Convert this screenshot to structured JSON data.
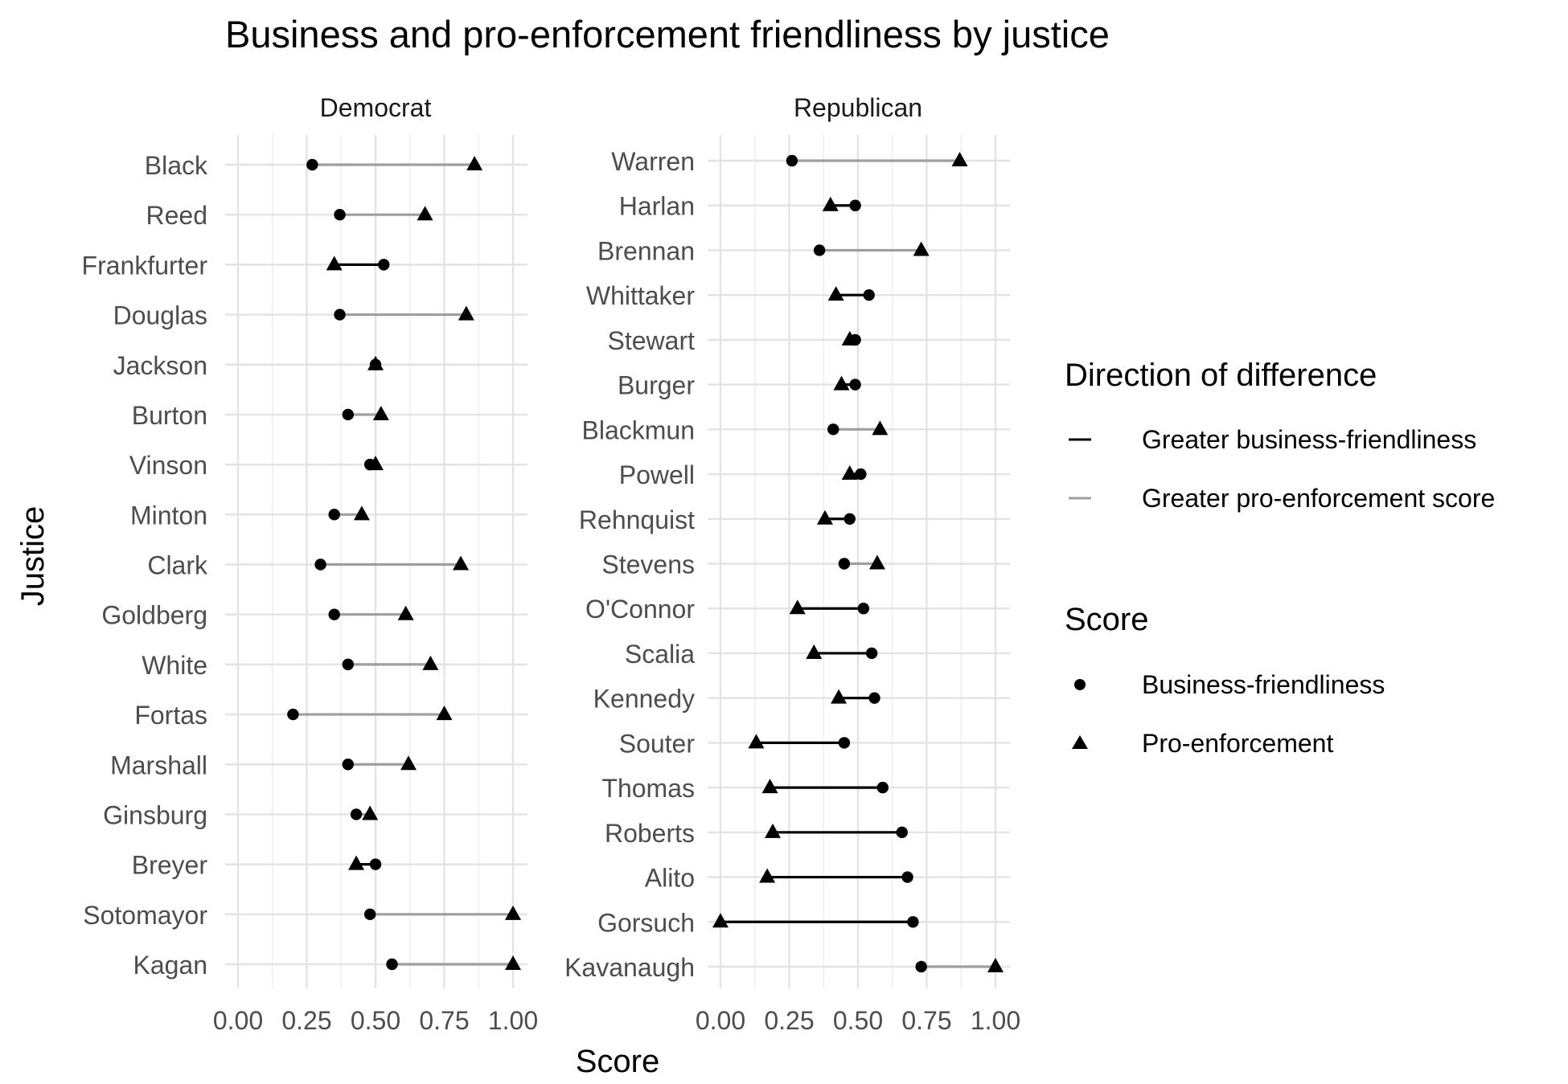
{
  "chart_data": {
    "type": "dumbbell",
    "title": "Business and pro-enforcement friendliness by justice",
    "xlabel": "Score",
    "ylabel": "Justice",
    "xlim": [
      0,
      1
    ],
    "x_ticks": [
      "0.00",
      "0.25",
      "0.50",
      "0.75",
      "1.00"
    ],
    "grid": true,
    "legend_placement": "right",
    "legend": {
      "direction_title": "Direction of difference",
      "direction_items": [
        {
          "label": "Greater business-friendliness",
          "color": "#000000"
        },
        {
          "label": "Greater pro-enforcement score",
          "color": "#9e9e9e"
        }
      ],
      "score_title": "Score",
      "score_items": [
        {
          "label": "Business-friendliness",
          "shape": "circle"
        },
        {
          "label": "Pro-enforcement",
          "shape": "triangle"
        }
      ]
    },
    "facets": [
      {
        "name": "Democrat",
        "justices": [
          {
            "name": "Black",
            "business": 0.27,
            "enforcement": 0.86
          },
          {
            "name": "Reed",
            "business": 0.37,
            "enforcement": 0.68
          },
          {
            "name": "Frankfurter",
            "business": 0.53,
            "enforcement": 0.35
          },
          {
            "name": "Douglas",
            "business": 0.37,
            "enforcement": 0.83
          },
          {
            "name": "Jackson",
            "business": 0.5,
            "enforcement": 0.5
          },
          {
            "name": "Burton",
            "business": 0.4,
            "enforcement": 0.52
          },
          {
            "name": "Vinson",
            "business": 0.48,
            "enforcement": 0.5
          },
          {
            "name": "Minton",
            "business": 0.35,
            "enforcement": 0.45
          },
          {
            "name": "Clark",
            "business": 0.3,
            "enforcement": 0.81
          },
          {
            "name": "Goldberg",
            "business": 0.35,
            "enforcement": 0.61
          },
          {
            "name": "White",
            "business": 0.4,
            "enforcement": 0.7
          },
          {
            "name": "Fortas",
            "business": 0.2,
            "enforcement": 0.75
          },
          {
            "name": "Marshall",
            "business": 0.4,
            "enforcement": 0.62
          },
          {
            "name": "Ginsburg",
            "business": 0.43,
            "enforcement": 0.48
          },
          {
            "name": "Breyer",
            "business": 0.5,
            "enforcement": 0.43
          },
          {
            "name": "Sotomayor",
            "business": 0.48,
            "enforcement": 1.0
          },
          {
            "name": "Kagan",
            "business": 0.56,
            "enforcement": 1.0
          }
        ]
      },
      {
        "name": "Republican",
        "justices": [
          {
            "name": "Warren",
            "business": 0.26,
            "enforcement": 0.87
          },
          {
            "name": "Harlan",
            "business": 0.49,
            "enforcement": 0.4
          },
          {
            "name": "Brennan",
            "business": 0.36,
            "enforcement": 0.73
          },
          {
            "name": "Whittaker",
            "business": 0.54,
            "enforcement": 0.42
          },
          {
            "name": "Stewart",
            "business": 0.49,
            "enforcement": 0.47
          },
          {
            "name": "Burger",
            "business": 0.49,
            "enforcement": 0.44
          },
          {
            "name": "Blackmun",
            "business": 0.41,
            "enforcement": 0.58
          },
          {
            "name": "Powell",
            "business": 0.51,
            "enforcement": 0.47
          },
          {
            "name": "Rehnquist",
            "business": 0.47,
            "enforcement": 0.38
          },
          {
            "name": "Stevens",
            "business": 0.45,
            "enforcement": 0.57
          },
          {
            "name": "O'Connor",
            "business": 0.52,
            "enforcement": 0.28
          },
          {
            "name": "Scalia",
            "business": 0.55,
            "enforcement": 0.34
          },
          {
            "name": "Kennedy",
            "business": 0.56,
            "enforcement": 0.43
          },
          {
            "name": "Souter",
            "business": 0.45,
            "enforcement": 0.13
          },
          {
            "name": "Thomas",
            "business": 0.59,
            "enforcement": 0.18
          },
          {
            "name": "Roberts",
            "business": 0.66,
            "enforcement": 0.19
          },
          {
            "name": "Alito",
            "business": 0.68,
            "enforcement": 0.17
          },
          {
            "name": "Gorsuch",
            "business": 0.7,
            "enforcement": 0.0
          },
          {
            "name": "Kavanaugh",
            "business": 0.73,
            "enforcement": 1.0
          }
        ]
      }
    ]
  }
}
